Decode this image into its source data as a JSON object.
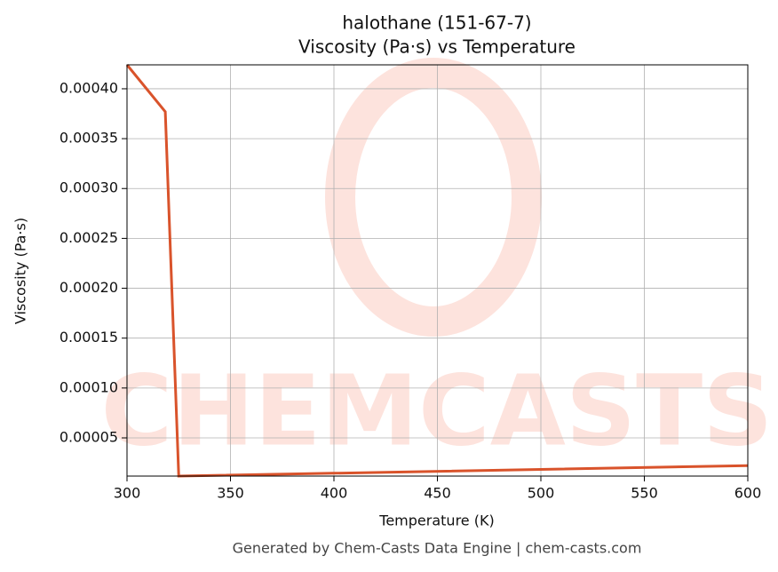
{
  "chart_data": {
    "type": "line",
    "title": "halothane (151-67-7)",
    "subtitle": "Viscosity (Pa·s) vs Temperature",
    "x_label": "Temperature (K)",
    "y_label": "Viscosity (Pa·s)",
    "footer": "Generated by Chem-Casts Data Engine | chem-casts.com",
    "watermark": "CHEMCASTS",
    "x": [
      300,
      318.5,
      325,
      600
    ],
    "series": [
      {
        "name": "Viscosity",
        "color": "#d9532b",
        "values": [
          0.000424,
          0.000377,
          1.17e-05,
          2.22e-05
        ]
      }
    ],
    "xlim": [
      300,
      600
    ],
    "xticks": [
      300,
      350,
      400,
      450,
      500,
      550,
      600
    ],
    "ylim": [
      1.17e-05,
      0.000424
    ],
    "yticks": [
      {
        "value": 5e-05,
        "label": "0.00005"
      },
      {
        "value": 0.0001,
        "label": "0.00010"
      },
      {
        "value": 0.00015,
        "label": "0.00015"
      },
      {
        "value": 0.0002,
        "label": "0.00020"
      },
      {
        "value": 0.00025,
        "label": "0.00025"
      },
      {
        "value": 0.0003,
        "label": "0.00030"
      },
      {
        "value": 0.00035,
        "label": "0.00035"
      },
      {
        "value": 0.0004,
        "label": "0.00040"
      }
    ],
    "grid": true
  }
}
